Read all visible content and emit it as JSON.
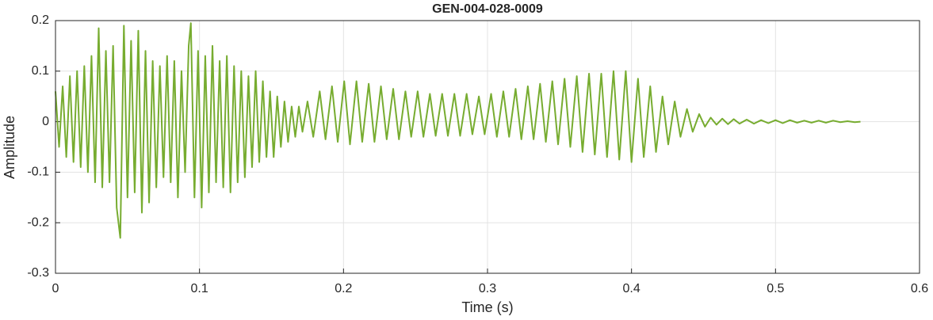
{
  "chart_data": {
    "type": "line",
    "title": "GEN-004-028-0009",
    "x_label": "Time (s)",
    "y_label": "Amplitude",
    "color": "#77ac30",
    "grid": true,
    "xlim": [
      0,
      0.6
    ],
    "xticks": [
      0,
      0.1,
      0.2,
      0.3,
      0.4,
      0.5,
      0.6
    ],
    "ylim": [
      -0.3,
      0.2
    ],
    "yticks": [
      -0.3,
      -0.2,
      -0.1,
      0,
      0.1,
      0.2
    ],
    "x": [
      0,
      0.0025,
      0.005,
      0.0075,
      0.01,
      0.0125,
      0.015,
      0.0175,
      0.02,
      0.0225,
      0.025,
      0.0275,
      0.03,
      0.0325,
      0.035,
      0.0375,
      0.04,
      0.0425,
      0.045,
      0.0475,
      0.05,
      0.0525,
      0.055,
      0.0575,
      0.06,
      0.0625,
      0.065,
      0.0675,
      0.07,
      0.0725,
      0.075,
      0.0775,
      0.08,
      0.0825,
      0.085,
      0.0875,
      0.09,
      0.0925,
      0.094,
      0.0965,
      0.099,
      0.1015,
      0.104,
      0.1065,
      0.109,
      0.1115,
      0.114,
      0.1165,
      0.119,
      0.1215,
      0.124,
      0.1265,
      0.129,
      0.1315,
      0.134,
      0.1365,
      0.139,
      0.1415,
      0.144,
      0.1465,
      0.149,
      0.1515,
      0.154,
      0.1565,
      0.159,
      0.1615,
      0.164,
      0.1665,
      0.169,
      0.1715,
      0.175,
      0.179,
      0.1835,
      0.1875,
      0.192,
      0.196,
      0.2005,
      0.2045,
      0.209,
      0.213,
      0.2175,
      0.2215,
      0.226,
      0.23,
      0.2345,
      0.2385,
      0.243,
      0.247,
      0.2515,
      0.2555,
      0.26,
      0.264,
      0.2685,
      0.2725,
      0.277,
      0.281,
      0.2855,
      0.2895,
      0.294,
      0.298,
      0.3025,
      0.3065,
      0.311,
      0.315,
      0.3195,
      0.3235,
      0.328,
      0.332,
      0.3365,
      0.3405,
      0.345,
      0.349,
      0.3535,
      0.3575,
      0.362,
      0.366,
      0.3705,
      0.3745,
      0.379,
      0.383,
      0.3875,
      0.3915,
      0.396,
      0.4,
      0.4045,
      0.4085,
      0.413,
      0.417,
      0.4215,
      0.4255,
      0.43,
      0.434,
      0.4385,
      0.4425,
      0.447,
      0.451,
      0.455,
      0.459,
      0.463,
      0.467,
      0.471,
      0.475,
      0.48,
      0.485,
      0.49,
      0.495,
      0.5,
      0.505,
      0.51,
      0.515,
      0.52,
      0.525,
      0.53,
      0.535,
      0.54,
      0.545,
      0.55,
      0.555,
      0.559
    ],
    "values": [
      0.06,
      -0.05,
      0.07,
      -0.07,
      0.09,
      -0.08,
      0.1,
      -0.09,
      0.11,
      -0.1,
      0.13,
      -0.12,
      0.185,
      -0.13,
      0.14,
      -0.12,
      0.15,
      -0.17,
      -0.23,
      0.19,
      -0.15,
      0.16,
      -0.14,
      0.18,
      -0.18,
      0.14,
      -0.16,
      0.12,
      -0.13,
      0.11,
      -0.11,
      0.13,
      -0.12,
      0.12,
      -0.15,
      0.1,
      -0.1,
      0.15,
      0.195,
      -0.15,
      0.14,
      -0.17,
      0.13,
      -0.14,
      0.15,
      -0.12,
      0.12,
      -0.13,
      0.13,
      -0.14,
      0.11,
      -0.12,
      0.1,
      -0.11,
      0.09,
      -0.09,
      0.1,
      -0.08,
      0.08,
      -0.07,
      0.06,
      -0.07,
      0.05,
      -0.05,
      0.04,
      -0.04,
      0.03,
      -0.03,
      0.03,
      -0.02,
      0.04,
      -0.03,
      0.06,
      -0.035,
      0.07,
      -0.04,
      0.08,
      -0.045,
      0.08,
      -0.04,
      0.075,
      -0.04,
      0.07,
      -0.035,
      0.065,
      -0.035,
      0.06,
      -0.03,
      0.06,
      -0.03,
      0.055,
      -0.028,
      0.055,
      -0.028,
      0.055,
      -0.028,
      0.055,
      -0.025,
      0.05,
      -0.025,
      0.055,
      -0.03,
      0.06,
      -0.03,
      0.065,
      -0.035,
      0.07,
      -0.035,
      0.075,
      -0.04,
      0.08,
      -0.045,
      0.085,
      -0.05,
      0.09,
      -0.06,
      0.095,
      -0.065,
      0.095,
      -0.07,
      0.1,
      -0.075,
      0.1,
      -0.08,
      0.085,
      -0.07,
      0.07,
      -0.06,
      0.05,
      -0.045,
      0.04,
      -0.03,
      0.025,
      -0.02,
      0.015,
      -0.01,
      0.008,
      -0.006,
      0.006,
      -0.005,
      0.005,
      -0.004,
      0.004,
      -0.004,
      0.003,
      -0.003,
      0.003,
      -0.003,
      0.003,
      -0.002,
      0.002,
      -0.002,
      0.002,
      -0.002,
      0.002,
      -0.001,
      0.001,
      -0.001,
      0
    ]
  }
}
